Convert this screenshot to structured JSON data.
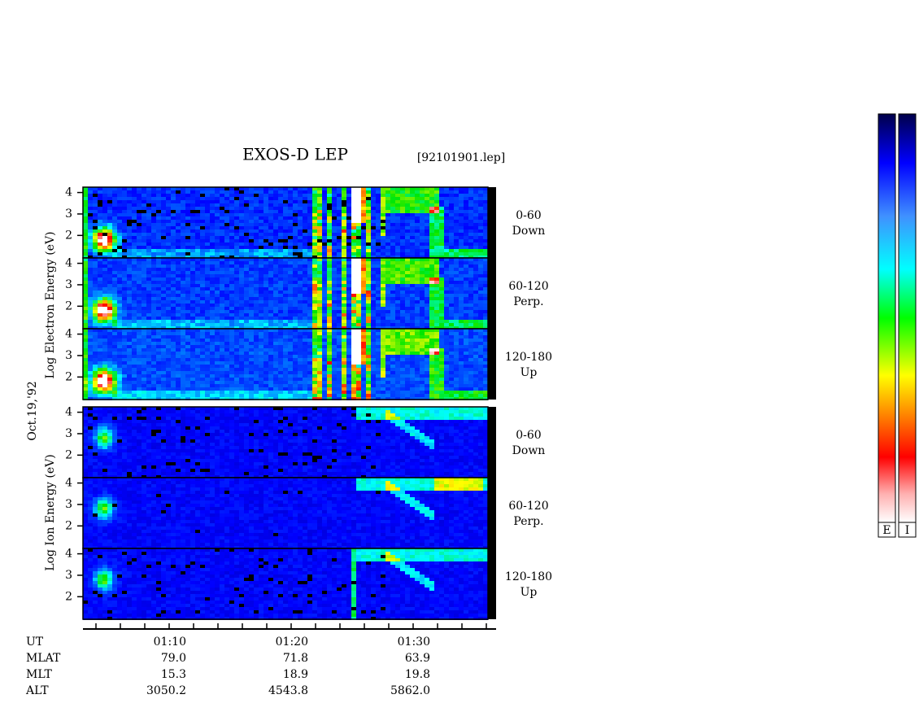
{
  "title": "EXOS-D LEP",
  "file": "[92101901.lep]",
  "date": "Oct.19,'92",
  "electron_axis_label": "Log  Electron  Energy (eV)",
  "ion_axis_label": "Log  Ion  Energy (eV)",
  "ylim": [
    0.95,
    4.25
  ],
  "yticks": [
    2,
    3,
    4
  ],
  "electron_panels": [
    {
      "range": "0-60",
      "direction": "Down"
    },
    {
      "range": "60-120",
      "direction": "Perp."
    },
    {
      "range": "120-180",
      "direction": "Up"
    }
  ],
  "ion_panels": [
    {
      "range": "0-60",
      "direction": "Down"
    },
    {
      "range": "60-120",
      "direction": "Perp."
    },
    {
      "range": "120-180",
      "direction": "Up"
    }
  ],
  "orbit_table": {
    "rows": [
      [
        "UT",
        "01:10",
        "01:20",
        "01:30"
      ],
      [
        "MLAT",
        "79.0",
        "71.8",
        "63.9"
      ],
      [
        "MLT",
        "15.3",
        "18.9",
        "19.8"
      ],
      [
        "ALT",
        "3050.2",
        "4543.8",
        "5862.0"
      ]
    ]
  },
  "colorbar_labels": [
    "E",
    "I"
  ]
}
